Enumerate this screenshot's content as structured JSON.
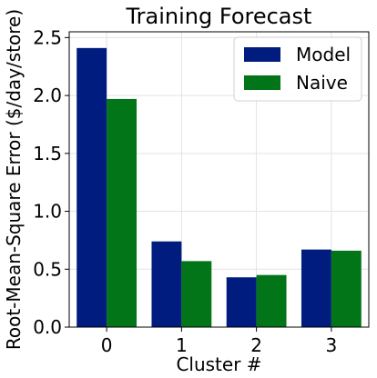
{
  "chart_data": {
    "type": "bar",
    "title": "Training Forecast",
    "xlabel": "Cluster #",
    "ylabel": "Root-Mean-Square Error ($/day/store)",
    "categories": [
      "0",
      "1",
      "2",
      "3"
    ],
    "series": [
      {
        "name": "Model",
        "values": [
          2.41,
          0.74,
          0.43,
          0.67
        ],
        "color": "#001c7f"
      },
      {
        "name": "Naive",
        "values": [
          1.97,
          0.57,
          0.45,
          0.66
        ],
        "color": "#017517"
      }
    ],
    "ylim": [
      0,
      2.5
    ],
    "yticks": [
      "0.0",
      "0.5",
      "1.0",
      "1.5",
      "2.0",
      "2.5"
    ],
    "grid": true,
    "legend_position": "top-right"
  }
}
